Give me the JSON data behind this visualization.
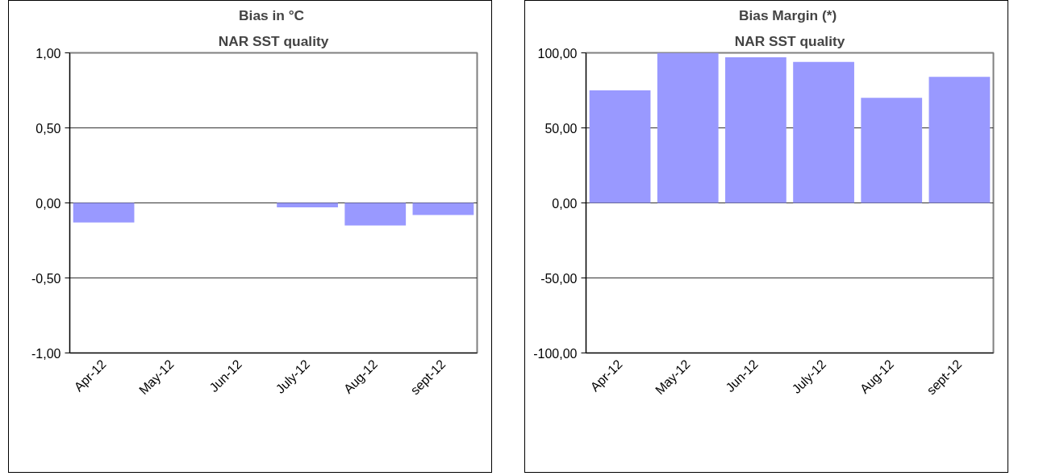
{
  "chart_data": [
    {
      "type": "bar",
      "title": "Bias  in °C",
      "subtitle": "NAR SST quality",
      "categories": [
        "Apr-12",
        "May-12",
        "Jun-12",
        "July-12",
        "Aug-12",
        "sept-12"
      ],
      "series": [
        {
          "color": "#9999ff",
          "values": [
            -0.13,
            0,
            0,
            -0.03,
            -0.15,
            -0.08
          ]
        }
      ],
      "ylim": [
        -1,
        1
      ],
      "yticks": [
        {
          "value": -1,
          "label": "-1,00"
        },
        {
          "value": -0.5,
          "label": "-0,50"
        },
        {
          "value": 0,
          "label": "0,00"
        },
        {
          "value": 0.5,
          "label": "0,50"
        },
        {
          "value": 1,
          "label": "1,00"
        }
      ],
      "grid": "y"
    },
    {
      "type": "bar",
      "title": "Bias Margin  (*)",
      "subtitle": "NAR SST quality",
      "categories": [
        "Apr-12",
        "May-12",
        "Jun-12",
        "July-12",
        "Aug-12",
        "sept-12"
      ],
      "series": [
        {
          "color": "#9999ff",
          "values": [
            75,
            100,
            97,
            94,
            70,
            84
          ]
        }
      ],
      "ylim": [
        -100,
        100
      ],
      "yticks": [
        {
          "value": -100,
          "label": "-100,00"
        },
        {
          "value": -50,
          "label": "-50,00"
        },
        {
          "value": 0,
          "label": "0,00"
        },
        {
          "value": 50,
          "label": "50,00"
        },
        {
          "value": 100,
          "label": "100,00"
        }
      ],
      "grid": "y"
    }
  ]
}
